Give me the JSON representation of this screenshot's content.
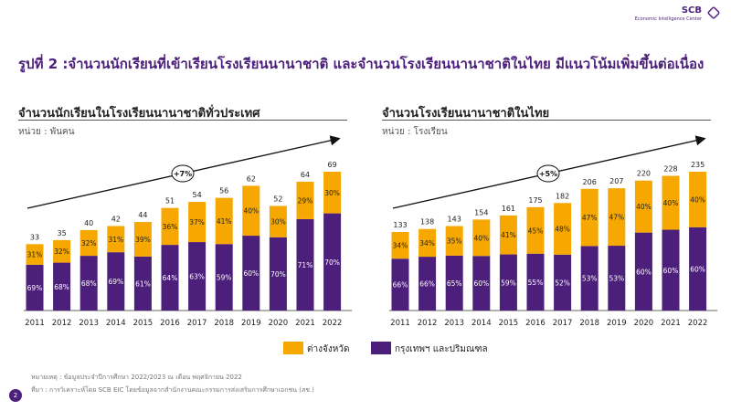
{
  "brand": {
    "name": "SCB",
    "tagline": "Economic Intelligence Center"
  },
  "title": "รูปที่ 2 :จำนวนนักเรียนที่เข้าเรียนโรงเรียนนานาชาติ และจำนวนโรงเรียนนานาชาติในไทย มีแนวโน้มเพิ่มขึ้นต่อเนื่อง",
  "legend": {
    "provinces": "ต่างจังหวัด",
    "bangkok": "กรุงเทพฯ และปริมณฑล"
  },
  "notes": {
    "note": "หมายเหตุ : ข้อมูลประจำปีการศึกษา 2022/2023 ณ เดือน พฤศจิกายน 2022",
    "source": "ที่มา : การวิเคราะห์โดย SCB EIC โดยข้อมูลจากสำนักงานคณะกรรมการส่งเสริมการศึกษาเอกชน (สช.)"
  },
  "page_number": "2",
  "colors": {
    "bangkok": "#4b1f7a",
    "provinces": "#f6a800",
    "title": "#4b1f7a"
  },
  "chart_data": [
    {
      "type": "bar",
      "stacked": true,
      "title": "จำนวนนักเรียนในโรงเรียนนานาชาติทั่วประเทศ",
      "unit": "หน่วย : พันคน",
      "growth_label": "+7%",
      "categories": [
        "2011",
        "2012",
        "2013",
        "2014",
        "2015",
        "2016",
        "2017",
        "2018",
        "2019",
        "2020",
        "2021",
        "2022"
      ],
      "totals": [
        33,
        35,
        40,
        42,
        44,
        51,
        54,
        56,
        62,
        52,
        64,
        69
      ],
      "series": [
        {
          "name": "กรุงเทพฯ และปริมณฑล",
          "percent": [
            69,
            68,
            68,
            69,
            61,
            64,
            63,
            59,
            60,
            70,
            71,
            70
          ]
        },
        {
          "name": "ต่างจังหวัด",
          "percent": [
            31,
            32,
            32,
            31,
            39,
            36,
            37,
            41,
            40,
            30,
            29,
            30
          ]
        }
      ],
      "ylim": [
        0,
        69
      ]
    },
    {
      "type": "bar",
      "stacked": true,
      "title": "จำนวนโรงเรียนนานาชาติในไทย",
      "unit": "หน่วย : โรงเรียน",
      "growth_label": "+5%",
      "categories": [
        "2011",
        "2012",
        "2013",
        "2014",
        "2015",
        "2016",
        "2017",
        "2018",
        "2019",
        "2020",
        "2021",
        "2022"
      ],
      "totals": [
        133,
        138,
        143,
        154,
        161,
        175,
        182,
        206,
        207,
        220,
        228,
        235
      ],
      "series": [
        {
          "name": "กรุงเทพฯ และปริมณฑล",
          "percent": [
            66,
            66,
            65,
            60,
            59,
            55,
            52,
            53,
            53,
            60,
            60,
            60
          ]
        },
        {
          "name": "ต่างจังหวัด",
          "percent": [
            34,
            34,
            35,
            40,
            41,
            45,
            48,
            47,
            47,
            40,
            40,
            40
          ]
        }
      ],
      "ylim": [
        0,
        235
      ]
    }
  ]
}
